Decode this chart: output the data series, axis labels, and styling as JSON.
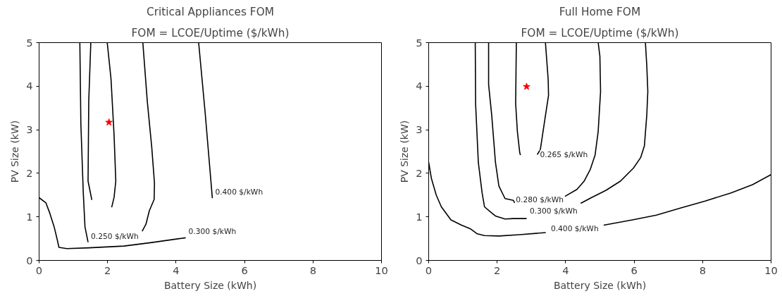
{
  "chart_data": [
    {
      "type": "line",
      "title": "Critical Appliances FOM",
      "subtitle": "FOM = LCOE/Uptime ($/kWh)",
      "xlabel": "Battery Size (kWh)",
      "ylabel": "PV Size (kW)",
      "xlim": [
        0,
        10
      ],
      "ylim": [
        0,
        5
      ],
      "xticks": [
        0,
        2,
        4,
        6,
        8,
        10
      ],
      "yticks": [
        0,
        1,
        2,
        3,
        4,
        5
      ],
      "grid": false,
      "series": [
        {
          "name": "0.250 $/kWh",
          "color": "#000000",
          "x": [
            1.19,
            1.22,
            1.29,
            1.34,
            1.43
          ],
          "values": [
            5,
            3.13,
            1.56,
            0.77,
            0.42
          ]
        },
        {
          "color": "#000000",
          "x": [
            1.51,
            1.45,
            1.43,
            1.54
          ],
          "values": [
            5,
            3.65,
            1.82,
            1.39
          ]
        },
        {
          "color": "#000000",
          "x": [
            1.99,
            2.1,
            2.19,
            2.24,
            2.19,
            2.12
          ],
          "values": [
            5,
            4.17,
            2.87,
            1.82,
            1.45,
            1.22
          ]
        },
        {
          "color": "#000000",
          "x": [
            3.03,
            3.16,
            3.29,
            3.37,
            3.36,
            3.22,
            3.12,
            3.01
          ],
          "values": [
            5,
            3.65,
            2.6,
            1.77,
            1.4,
            1.14,
            0.83,
            0.67
          ]
        },
        {
          "name": "0.400 $/kWh",
          "color": "#000000",
          "x": [
            4.66,
            4.85,
            5.06
          ],
          "values": [
            5,
            3.39,
            1.43
          ]
        },
        {
          "name": "0.300 $/kWh",
          "color": "#000000",
          "x": [
            0,
            0.2,
            0.31,
            0.44,
            0.52,
            0.58,
            0.81,
            1.46,
            2.48,
            3.29,
            4.28
          ],
          "values": [
            1.44,
            1.32,
            1.09,
            0.77,
            0.51,
            0.3,
            0.27,
            0.29,
            0.33,
            0.41,
            0.52
          ]
        },
        {
          "type": "scatter",
          "marker": "star",
          "color": "#ff0000",
          "x": [
            2.04
          ],
          "values": [
            3.17
          ]
        }
      ],
      "legend": false
    },
    {
      "type": "line",
      "title": "Full Home FOM",
      "subtitle": "FOM = LCOE/Uptime ($/kWh)",
      "xlabel": "Battery Size (kWh)",
      "ylabel": "PV Size (kW)",
      "xlim": [
        0,
        10
      ],
      "ylim": [
        0,
        5
      ],
      "xticks": [
        0,
        2,
        4,
        6,
        8,
        10
      ],
      "yticks": [
        0,
        1,
        2,
        3,
        4,
        5
      ],
      "grid": false,
      "series": [
        {
          "name": "0.300 $/kWh",
          "color": "#000000",
          "x": [
            1.36,
            1.37,
            1.45,
            1.56,
            1.63,
            1.84,
            1.95,
            2.23,
            2.47,
            2.86,
            null,
            4.44,
            4.75,
            5.18,
            5.6,
            5.98,
            6.19,
            6.3,
            6.37,
            6.4,
            6.37,
            6.33
          ],
          "values": [
            5,
            3.6,
            2.25,
            1.55,
            1.23,
            1.09,
            1.02,
            0.95,
            0.96,
            0.96,
            null,
            1.31,
            1.44,
            1.61,
            1.82,
            2.12,
            2.36,
            2.63,
            3.34,
            3.88,
            4.47,
            5
          ]
        },
        {
          "name": "0.280 $/kWh",
          "color": "#000000",
          "x": [
            1.75,
            1.75,
            1.84,
            1.95,
            2.05,
            2.23,
            2.47,
            2.51,
            null,
            3.98,
            4.33,
            4.54,
            4.72,
            4.86,
            4.95,
            5.02,
            5.0,
            4.95
          ],
          "values": [
            5,
            4.04,
            3.34,
            2.25,
            1.71,
            1.42,
            1.38,
            1.32,
            null,
            1.47,
            1.63,
            1.82,
            2.09,
            2.42,
            2.96,
            3.88,
            4.69,
            5
          ]
        },
        {
          "name": "0.265 $/kWh",
          "color": "#000000",
          "x": [
            2.56,
            2.54,
            2.59,
            2.66,
            2.68,
            null,
            3.17,
            3.26,
            3.38,
            3.5,
            3.49,
            3.41
          ],
          "values": [
            5,
            3.6,
            2.96,
            2.47,
            2.42,
            null,
            2.43,
            2.54,
            3.17,
            3.79,
            4.15,
            5
          ]
        },
        {
          "name": "0.400 $/kWh",
          "color": "#000000",
          "x": [
            0,
            0.08,
            0.22,
            0.37,
            0.65,
            0.96,
            1.21,
            1.42,
            1.63,
            2.05,
            2.65,
            3.42,
            null,
            5.11,
            5.95,
            6.65,
            7.35,
            8.06,
            8.83,
            9.46,
            10
          ],
          "values": [
            2.25,
            1.88,
            1.5,
            1.23,
            0.93,
            0.81,
            0.73,
            0.61,
            0.57,
            0.56,
            0.59,
            0.64,
            null,
            0.81,
            0.93,
            1.04,
            1.2,
            1.36,
            1.55,
            1.74,
            1.97
          ]
        },
        {
          "type": "scatter",
          "marker": "star",
          "color": "#ff0000",
          "x": [
            2.86
          ],
          "values": [
            3.99
          ]
        }
      ],
      "legend": false
    }
  ]
}
